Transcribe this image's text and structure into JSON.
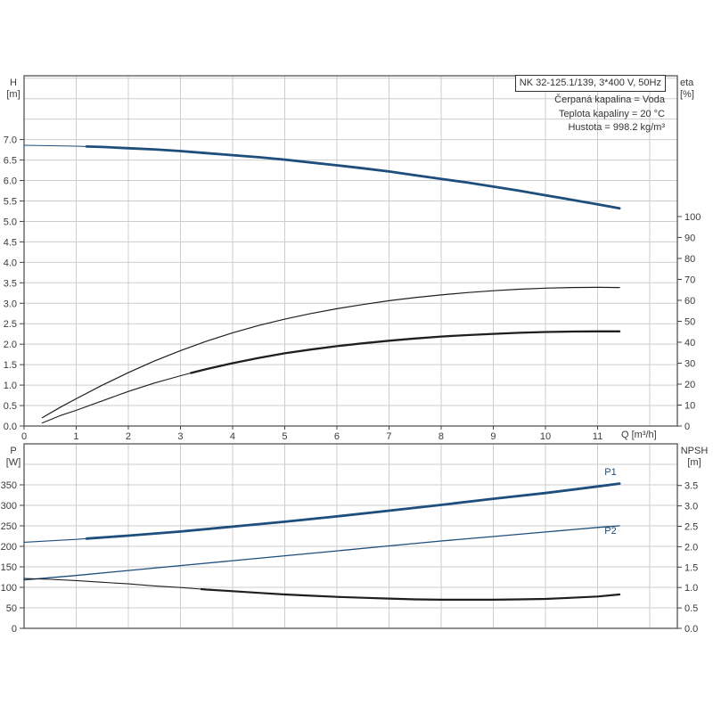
{
  "title_box": {
    "label": "NK 32-125.1/139, 3*400 V, 50Hz"
  },
  "info": {
    "line1": "Čerpaná kapalina = Voda",
    "line2": "Teplota kapaliny = 20 °C",
    "line3": "Hustota = 998.2 kg/m³"
  },
  "colors": {
    "blue": "#1d4e7c",
    "black": "#1f1f1f",
    "grid": "#cdcdcd",
    "frame": "#606060",
    "tick": "#444444",
    "text": "#3a3a3a",
    "background": "#ffffff"
  },
  "chart_data": [
    {
      "type": "line",
      "title": "NK 32-125.1/139, 3*400 V, 50Hz",
      "xlabel": "Q [m³/h]",
      "ylabel_left": "H",
      "ylabel_left_unit": "[m]",
      "ylabel_right": "eta",
      "ylabel_right_unit": "[%]",
      "xlim": [
        0,
        12.53
      ],
      "ylim_left": [
        0,
        8.56
      ],
      "ylim_right": [
        0,
        167.2
      ],
      "grid": true,
      "grid_x": [
        1,
        2,
        3,
        4,
        5,
        6,
        7,
        8,
        9,
        10,
        11,
        12
      ],
      "grid_left": [
        0.5,
        1.0,
        1.5,
        2.0,
        2.5,
        3.0,
        3.5,
        4.0,
        4.5,
        5.0,
        5.5,
        6.0,
        6.5,
        7.0,
        7.5,
        8.0,
        8.5
      ],
      "xticks": {
        "values": [
          0,
          1,
          2,
          3,
          4,
          5,
          6,
          7,
          8,
          9,
          10,
          11
        ],
        "labels": [
          "0",
          "1",
          "2",
          "3",
          "4",
          "5",
          "6",
          "7",
          "8",
          "9",
          "10",
          "11"
        ]
      },
      "yticks_left": {
        "values": [
          0,
          0.5,
          1.0,
          1.5,
          2.0,
          2.5,
          3.0,
          3.5,
          4.0,
          4.5,
          5.0,
          5.5,
          6.0,
          6.5,
          7.0
        ],
        "labels": [
          "0.0",
          "0.5",
          "1.0",
          "1.5",
          "2.0",
          "2.5",
          "3.0",
          "3.5",
          "4.0",
          "4.5",
          "5.0",
          "5.5",
          "6.0",
          "6.5",
          "7.0"
        ]
      },
      "yticks_right": {
        "values": [
          0,
          10,
          20,
          30,
          40,
          50,
          60,
          70,
          80,
          90,
          100
        ],
        "labels": [
          "0",
          "10",
          "20",
          "30",
          "40",
          "50",
          "60",
          "70",
          "80",
          "90",
          "100"
        ]
      },
      "series": [
        {
          "name": "H",
          "axis": "left",
          "color": "#1d4e7c",
          "width": 2.8,
          "thin_width": 1.1,
          "thin_until": 1.2,
          "points": [
            [
              0,
              6.86
            ],
            [
              0.5,
              6.85
            ],
            [
              1,
              6.84
            ],
            [
              1.2,
              6.83
            ],
            [
              1.5,
              6.82
            ],
            [
              2,
              6.79
            ],
            [
              2.5,
              6.76
            ],
            [
              3,
              6.72
            ],
            [
              3.5,
              6.67
            ],
            [
              4,
              6.62
            ],
            [
              4.5,
              6.57
            ],
            [
              5,
              6.51
            ],
            [
              5.5,
              6.44
            ],
            [
              6,
              6.37
            ],
            [
              6.5,
              6.3
            ],
            [
              7,
              6.22
            ],
            [
              7.5,
              6.13
            ],
            [
              8,
              6.04
            ],
            [
              8.5,
              5.95
            ],
            [
              9,
              5.85
            ],
            [
              9.5,
              5.75
            ],
            [
              10,
              5.64
            ],
            [
              10.5,
              5.53
            ],
            [
              11,
              5.42
            ],
            [
              11.42,
              5.32
            ]
          ]
        },
        {
          "name": "eta-pump",
          "axis": "right",
          "color": "#1f1f1f",
          "width": 1.2,
          "points": [
            [
              0.35,
              4
            ],
            [
              0.7,
              9
            ],
            [
              1,
              13
            ],
            [
              1.5,
              19.5
            ],
            [
              2,
              25.5
            ],
            [
              2.5,
              31
            ],
            [
              3,
              36
            ],
            [
              3.5,
              40.5
            ],
            [
              4,
              44.5
            ],
            [
              4.5,
              48
            ],
            [
              5,
              51
            ],
            [
              5.5,
              53.7
            ],
            [
              6,
              56
            ],
            [
              6.5,
              58
            ],
            [
              7,
              59.8
            ],
            [
              7.5,
              61.3
            ],
            [
              8,
              62.6
            ],
            [
              8.5,
              63.7
            ],
            [
              9,
              64.6
            ],
            [
              9.5,
              65.3
            ],
            [
              10,
              65.8
            ],
            [
              10.5,
              66.1
            ],
            [
              11,
              66.2
            ],
            [
              11.42,
              66.1
            ]
          ]
        },
        {
          "name": "eta-pump-motor",
          "axis": "right",
          "color": "#1f1f1f",
          "width": 2.3,
          "thin_width": 1.1,
          "thin_until": 3.2,
          "points": [
            [
              0.35,
              1.5
            ],
            [
              0.7,
              5
            ],
            [
              1,
              7.5
            ],
            [
              1.5,
              12
            ],
            [
              2,
              16.5
            ],
            [
              2.5,
              20.5
            ],
            [
              3,
              24
            ],
            [
              3.2,
              25.3
            ],
            [
              3.5,
              27.2
            ],
            [
              4,
              30
            ],
            [
              4.5,
              32.5
            ],
            [
              5,
              34.7
            ],
            [
              5.5,
              36.5
            ],
            [
              6,
              38.1
            ],
            [
              6.5,
              39.5
            ],
            [
              7,
              40.7
            ],
            [
              7.5,
              41.8
            ],
            [
              8,
              42.7
            ],
            [
              8.5,
              43.4
            ],
            [
              9,
              44
            ],
            [
              9.5,
              44.5
            ],
            [
              10,
              44.9
            ],
            [
              10.5,
              45.1
            ],
            [
              11,
              45.2
            ],
            [
              11.42,
              45.2
            ]
          ]
        }
      ]
    },
    {
      "type": "line",
      "xlabel": "",
      "ylabel_left": "P",
      "ylabel_left_unit": "[W]",
      "ylabel_right": "NPSH",
      "ylabel_right_unit": "[m]",
      "xlim": [
        0,
        12.53
      ],
      "ylim_left": [
        0,
        450
      ],
      "ylim_right": [
        0,
        4.52
      ],
      "grid": true,
      "grid_x": [
        1,
        2,
        3,
        4,
        5,
        6,
        7,
        8,
        9,
        10,
        11,
        12
      ],
      "grid_left": [
        50,
        100,
        150,
        200,
        250,
        300,
        350,
        400
      ],
      "xticks": {
        "values": [],
        "labels": []
      },
      "yticks_left": {
        "values": [
          0,
          50,
          100,
          150,
          200,
          250,
          300,
          350
        ],
        "labels": [
          "0",
          "50",
          "100",
          "150",
          "200",
          "250",
          "300",
          "350"
        ]
      },
      "yticks_right": {
        "values": [
          0,
          0.5,
          1.0,
          1.5,
          2.0,
          2.5,
          3.0,
          3.5
        ],
        "labels": [
          "0.0",
          "0.5",
          "1.0",
          "1.5",
          "2.0",
          "2.5",
          "3.0",
          "3.5"
        ]
      },
      "series": [
        {
          "name": "P1",
          "label": "P1",
          "axis": "left",
          "color": "#1d4e7c",
          "width": 2.8,
          "thin_width": 1.1,
          "thin_until": 1.2,
          "points": [
            [
              0,
              210
            ],
            [
              1,
              217
            ],
            [
              1.2,
              219
            ],
            [
              2,
              226
            ],
            [
              3,
              236
            ],
            [
              4,
              248
            ],
            [
              5,
              260
            ],
            [
              6,
              273
            ],
            [
              7,
              287
            ],
            [
              8,
              301
            ],
            [
              9,
              316
            ],
            [
              10,
              330
            ],
            [
              11,
              346
            ],
            [
              11.42,
              353
            ]
          ]
        },
        {
          "name": "P2",
          "label": "P2",
          "axis": "left",
          "color": "#1d4e7c",
          "width": 1.3,
          "points": [
            [
              0,
              118
            ],
            [
              1,
              129
            ],
            [
              2,
              141
            ],
            [
              3,
              153
            ],
            [
              4,
              165
            ],
            [
              5,
              177
            ],
            [
              6,
              189
            ],
            [
              7,
              201
            ],
            [
              8,
              213
            ],
            [
              9,
              224
            ],
            [
              10,
              235
            ],
            [
              11,
              246
            ],
            [
              11.42,
              250
            ]
          ]
        },
        {
          "name": "NPSH",
          "axis": "right",
          "color": "#1f1f1f",
          "width": 2.2,
          "thin_width": 1.1,
          "thin_until": 3.4,
          "points": [
            [
              0,
              1.22
            ],
            [
              0.5,
              1.2
            ],
            [
              1,
              1.17
            ],
            [
              1.5,
              1.13
            ],
            [
              2,
              1.09
            ],
            [
              2.5,
              1.04
            ],
            [
              3,
              1.0
            ],
            [
              3.4,
              0.96
            ],
            [
              3.5,
              0.95
            ],
            [
              4,
              0.91
            ],
            [
              4.5,
              0.87
            ],
            [
              5,
              0.83
            ],
            [
              5.5,
              0.8
            ],
            [
              6,
              0.77
            ],
            [
              6.5,
              0.75
            ],
            [
              7,
              0.73
            ],
            [
              7.5,
              0.71
            ],
            [
              8,
              0.7
            ],
            [
              8.5,
              0.7
            ],
            [
              9,
              0.7
            ],
            [
              9.5,
              0.71
            ],
            [
              10,
              0.72
            ],
            [
              10.5,
              0.75
            ],
            [
              11,
              0.78
            ],
            [
              11.42,
              0.83
            ]
          ]
        }
      ]
    }
  ]
}
